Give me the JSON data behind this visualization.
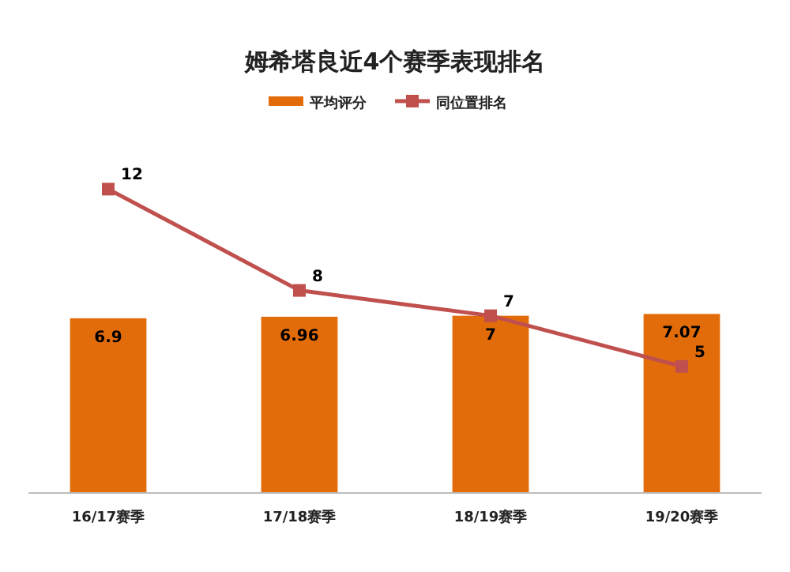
{
  "chart_data": {
    "type": "bar",
    "title": "姆希塔良近4个赛季表现排名",
    "categories": [
      "16/17赛季",
      "17/18赛季",
      "18/19赛季",
      "19/20赛季"
    ],
    "series": [
      {
        "name": "平均评分",
        "color": "#e36c0a",
        "values": [
          6.9,
          6.96,
          7,
          7.07
        ]
      },
      {
        "name": "同位置排名",
        "type": "line",
        "color": "#c0504d",
        "values": [
          12,
          8,
          7,
          5
        ],
        "marker": "square"
      }
    ],
    "data_labels": true,
    "legend": "top",
    "grid": false
  }
}
